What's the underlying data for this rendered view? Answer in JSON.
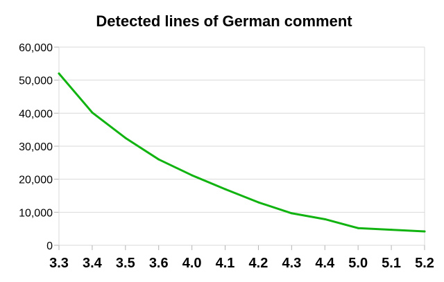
{
  "chart_data": {
    "type": "line",
    "title": "Detected lines of German comment",
    "xlabel": "",
    "ylabel": "",
    "categories": [
      "3.3",
      "3.4",
      "3.5",
      "3.6",
      "4.0",
      "4.1",
      "4.2",
      "4.3",
      "4.4",
      "5.0",
      "5.1",
      "5.2"
    ],
    "series": [
      {
        "values": [
          52000,
          40200,
          32500,
          26000,
          21200,
          17000,
          13000,
          9700,
          7900,
          5200,
          4700,
          4200
        ],
        "color": "#11b311"
      }
    ],
    "ylim": [
      0,
      60000
    ],
    "yticks": [
      0,
      10000,
      20000,
      30000,
      40000,
      50000,
      60000
    ],
    "ytick_labels": [
      "0",
      "10,000",
      "20,000",
      "30,000",
      "40,000",
      "50,000",
      "60,000"
    ],
    "grid": true,
    "legend": "none"
  }
}
